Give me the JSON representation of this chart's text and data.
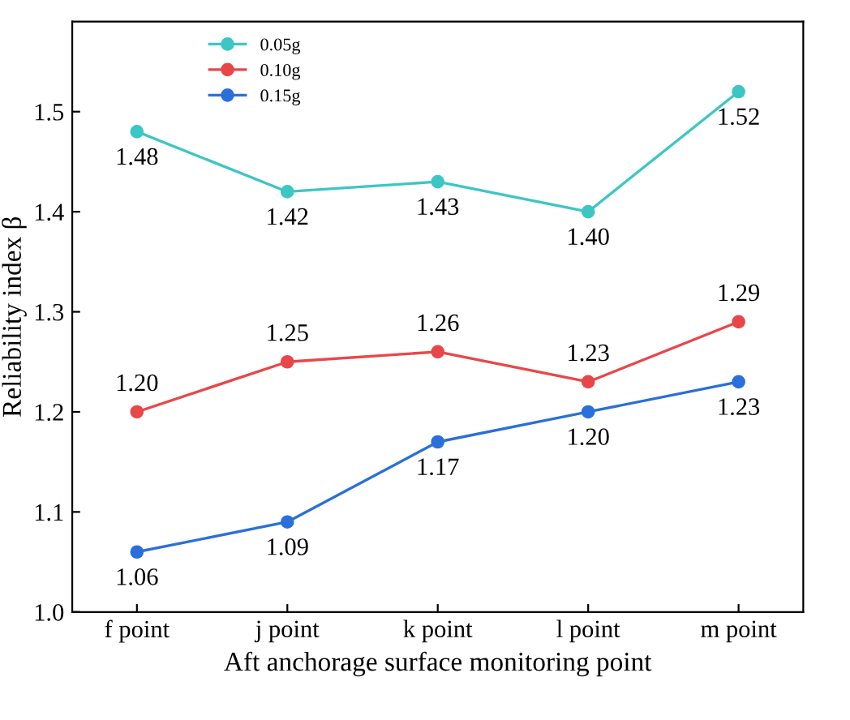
{
  "chart_data": {
    "type": "line",
    "xlabel": "Aft anchorage surface monitoring point",
    "ylabel": "Reliability index β",
    "categories": [
      "f point",
      "j point",
      "k point",
      "l point",
      "m point"
    ],
    "series": [
      {
        "name": "0.05g",
        "color": "#3cc6c4",
        "values": [
          1.48,
          1.42,
          1.43,
          1.4,
          1.52
        ],
        "value_labels": [
          "1.48",
          "1.42",
          "1.43",
          "1.40",
          "1.52"
        ]
      },
      {
        "name": "0.10g",
        "color": "#e8474a",
        "values": [
          1.2,
          1.25,
          1.26,
          1.23,
          1.29
        ],
        "value_labels": [
          "1.20",
          "1.25",
          "1.26",
          "1.23",
          "1.29"
        ]
      },
      {
        "name": "0.15g",
        "color": "#2a6fdb",
        "values": [
          1.06,
          1.09,
          1.17,
          1.2,
          1.23
        ],
        "value_labels": [
          "1.06",
          "1.09",
          "1.17",
          "1.20",
          "1.23"
        ]
      }
    ],
    "ylim": [
      1.0,
      1.59
    ],
    "yticks": [
      {
        "value": 1.0,
        "label": "1.0"
      },
      {
        "value": 1.1,
        "label": "1.1"
      },
      {
        "value": 1.2,
        "label": "1.2"
      },
      {
        "value": 1.3,
        "label": "1.3"
      },
      {
        "value": 1.4,
        "label": "1.4"
      },
      {
        "value": 1.5,
        "label": "1.5"
      }
    ],
    "marker": "circle",
    "line_style": "solid",
    "legend": "top",
    "grid": false
  }
}
